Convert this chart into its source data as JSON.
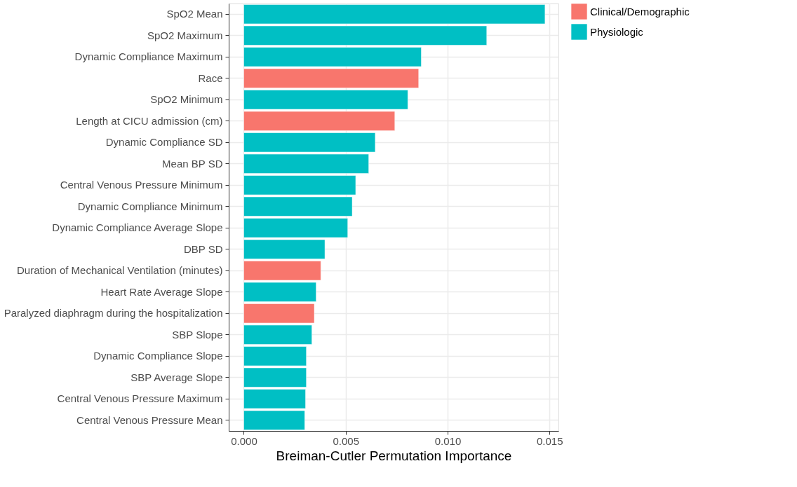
{
  "chart_data": {
    "type": "bar",
    "orientation": "horizontal",
    "xlabel": "Breiman-Cutler Permutation Importance",
    "categories": [
      "SpO2 Mean",
      "SpO2 Maximum",
      "Dynamic Compliance Maximum",
      "Race",
      "SpO2 Minimum",
      "Length at CICU admission (cm)",
      "Dynamic Compliance SD",
      "Mean BP SD",
      "Central Venous Pressure Minimum",
      "Dynamic Compliance Minimum",
      "Dynamic Compliance  Average Slope",
      "DBP SD",
      "Duration of Mechanical Ventilation (minutes)",
      "Heart Rate Average Slope",
      "Paralyzed diaphragm during the hospitalization",
      "SBP Slope",
      "Dynamic Compliance Slope",
      "SBP Average Slope",
      "Central Venous Pressure Maximum",
      "Central Venous Pressure Mean"
    ],
    "series": [
      {
        "name": "Clinical/Demographic",
        "color": "#f8766d",
        "values": [
          null,
          null,
          null,
          0.00858,
          null,
          0.00741,
          null,
          null,
          null,
          null,
          null,
          null,
          0.00378,
          null,
          0.00346,
          null,
          null,
          null,
          null,
          null
        ]
      },
      {
        "name": "Physiologic",
        "color": "#00bfc4",
        "values": [
          0.01478,
          0.01192,
          0.00871,
          null,
          0.00805,
          null,
          0.00645,
          0.00613,
          0.00549,
          0.00532,
          0.0051,
          0.00398,
          null,
          0.00355,
          null,
          0.00334,
          0.00307,
          0.00307,
          0.00303,
          0.00299
        ]
      }
    ],
    "xlim": [
      -0.00074,
      0.01544
    ],
    "xticks": [
      {
        "value": 0,
        "label": "0.000"
      },
      {
        "value": 0.005,
        "label": "0.005"
      },
      {
        "value": 0.01,
        "label": "0.010"
      },
      {
        "value": 0.015,
        "label": "0.015"
      }
    ],
    "grid": true,
    "legend": "right"
  }
}
